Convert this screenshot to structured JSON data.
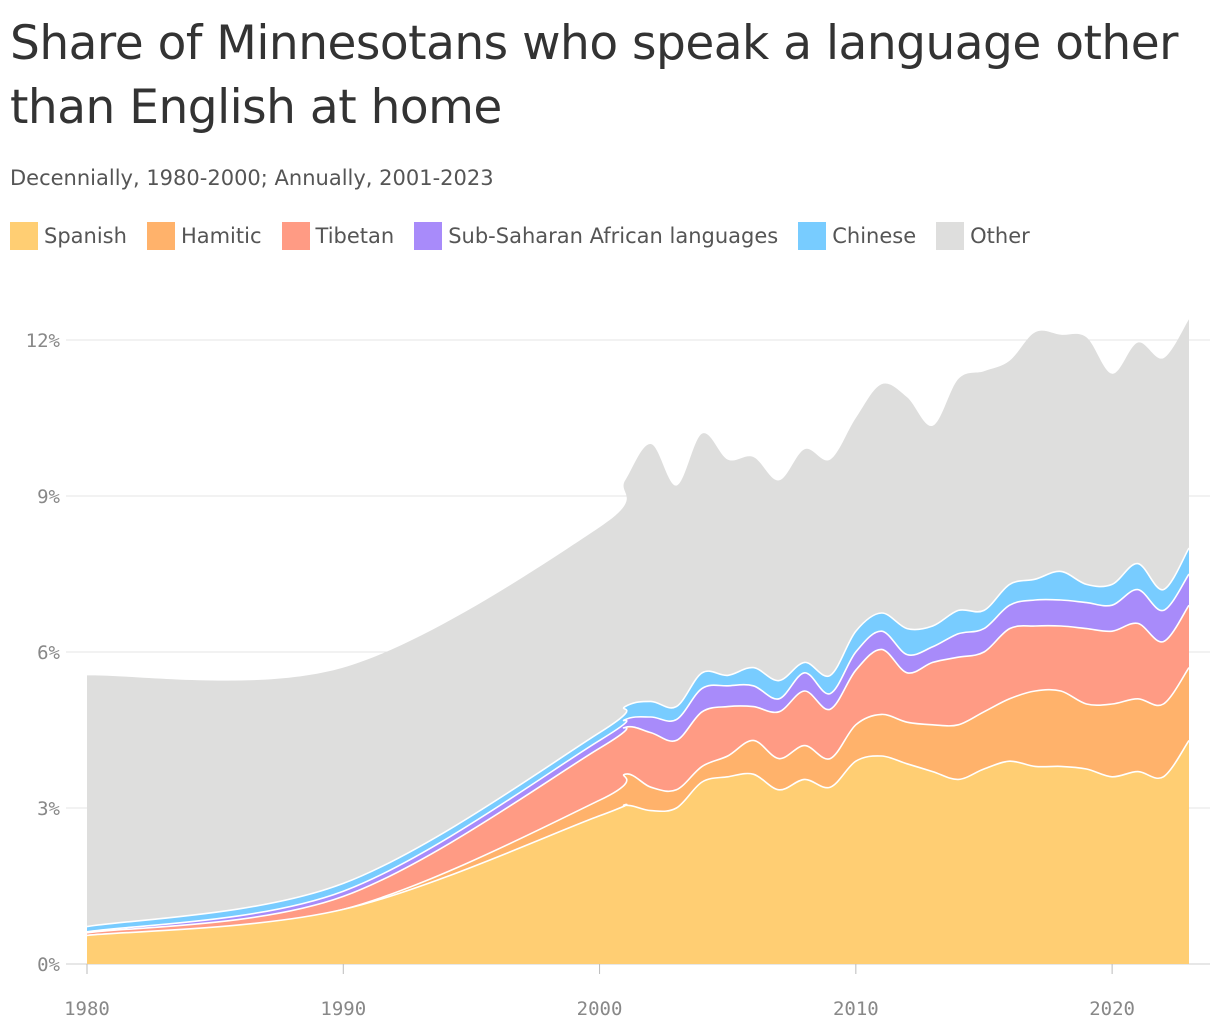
{
  "title": "Share of Minnesotans who speak a language other than English at home",
  "subtitle": "Decennially, 1980-2000; Annually, 2001-2023",
  "colors": {
    "Spanish": "#FFCE73",
    "Hamitic": "#FFB26B",
    "Tibetan": "#FF9B84",
    "Sub-Saharan African languages": "#A88BFA",
    "Chinese": "#78CCFF",
    "Other": "#DEDEDD"
  },
  "chart_data": {
    "type": "area",
    "stacked": true,
    "x": [
      1980,
      1990,
      2000,
      2001,
      2002,
      2003,
      2004,
      2005,
      2006,
      2007,
      2008,
      2009,
      2010,
      2011,
      2012,
      2013,
      2014,
      2015,
      2016,
      2017,
      2018,
      2019,
      2020,
      2021,
      2022,
      2023
    ],
    "series": [
      {
        "name": "Spanish",
        "values": [
          0.55,
          1.05,
          2.85,
          3.05,
          2.95,
          3.0,
          3.5,
          3.6,
          3.65,
          3.35,
          3.55,
          3.4,
          3.9,
          4.0,
          3.85,
          3.7,
          3.55,
          3.75,
          3.9,
          3.8,
          3.8,
          3.75,
          3.6,
          3.7,
          3.6,
          4.3
        ]
      },
      {
        "name": "Hamitic",
        "values": [
          0.0,
          0.0,
          0.3,
          0.6,
          0.45,
          0.35,
          0.3,
          0.4,
          0.65,
          0.6,
          0.65,
          0.55,
          0.7,
          0.8,
          0.8,
          0.9,
          1.05,
          1.1,
          1.2,
          1.45,
          1.45,
          1.25,
          1.4,
          1.4,
          1.4,
          1.4
        ]
      },
      {
        "name": "Tibetan",
        "values": [
          0.05,
          0.25,
          1.0,
          0.9,
          1.05,
          0.95,
          1.05,
          0.95,
          0.65,
          0.9,
          1.05,
          0.95,
          1.05,
          1.25,
          0.95,
          1.2,
          1.3,
          1.15,
          1.35,
          1.25,
          1.25,
          1.45,
          1.4,
          1.45,
          1.2,
          1.2
        ]
      },
      {
        "name": "Sub-Saharan African languages",
        "values": [
          0.02,
          0.1,
          0.15,
          0.15,
          0.3,
          0.4,
          0.45,
          0.4,
          0.4,
          0.25,
          0.35,
          0.3,
          0.35,
          0.35,
          0.35,
          0.3,
          0.45,
          0.45,
          0.45,
          0.5,
          0.5,
          0.5,
          0.5,
          0.65,
          0.6,
          0.6
        ]
      },
      {
        "name": "Chinese",
        "values": [
          0.1,
          0.15,
          0.15,
          0.25,
          0.3,
          0.25,
          0.3,
          0.2,
          0.35,
          0.35,
          0.2,
          0.35,
          0.4,
          0.35,
          0.5,
          0.4,
          0.45,
          0.35,
          0.4,
          0.4,
          0.55,
          0.35,
          0.4,
          0.5,
          0.4,
          0.5
        ]
      },
      {
        "name": "Other",
        "values": [
          4.83,
          4.15,
          3.95,
          4.35,
          4.95,
          4.25,
          4.6,
          4.15,
          4.05,
          3.85,
          4.1,
          4.15,
          4.1,
          4.4,
          4.45,
          3.85,
          4.45,
          4.6,
          4.3,
          4.75,
          4.55,
          4.75,
          4.05,
          4.25,
          4.45,
          4.4
        ]
      }
    ],
    "xticks": [
      "1980",
      "1990",
      "2000",
      "2010",
      "2020"
    ],
    "yticks": [
      "0%",
      "3%",
      "6%",
      "9%",
      "12%"
    ],
    "ylim": [
      0,
      12.5
    ],
    "xlim": [
      1980,
      2023
    ],
    "grid": true,
    "legend": "top-left"
  }
}
